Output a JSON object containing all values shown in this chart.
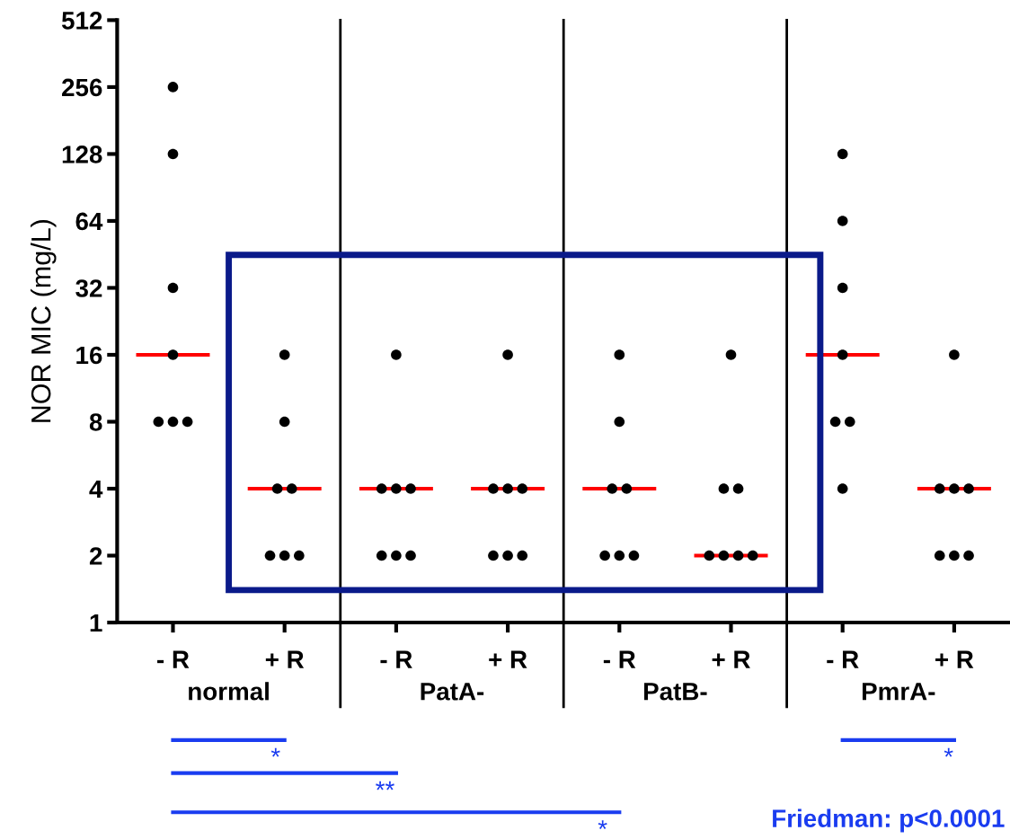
{
  "chart_data": {
    "type": "scatter",
    "ylabel": "NOR MIC (mg/L)",
    "categories": [
      "- R",
      "+ R",
      "- R",
      "+ R",
      "- R",
      "+ R",
      "- R",
      "+ R"
    ],
    "log": "y",
    "ylim": [
      1,
      512
    ],
    "yticks": [
      1,
      2,
      4,
      8,
      16,
      32,
      64,
      128,
      256,
      512
    ],
    "grid": false,
    "marker": "circle",
    "series": [
      {
        "color": "#000000",
        "values": [
          256,
          16,
          16,
          16,
          16,
          16,
          128,
          16
        ]
      },
      {
        "color": "#000000",
        "values": [
          128,
          8,
          4,
          4,
          8,
          4,
          64,
          4
        ]
      },
      {
        "color": "#000000",
        "values": [
          32,
          4,
          4,
          4,
          4,
          4,
          32,
          4
        ]
      },
      {
        "color": "#000000",
        "values": [
          16,
          4,
          4,
          4,
          4,
          2,
          16,
          4
        ]
      },
      {
        "color": "#000000",
        "values": [
          8,
          2,
          2,
          2,
          2,
          2,
          8,
          2
        ]
      },
      {
        "color": "#000000",
        "values": [
          8,
          2,
          2,
          2,
          2,
          2,
          8,
          2
        ]
      },
      {
        "color": "#000000",
        "values": [
          8,
          2,
          2,
          2,
          2,
          2,
          4,
          2
        ]
      }
    ],
    "annotations": [
      "normal",
      "PatA-",
      "PatB-",
      "PmrA-",
      "*",
      "**",
      "*",
      "*",
      "Friedman: p<0.0001"
    ]
  }
}
